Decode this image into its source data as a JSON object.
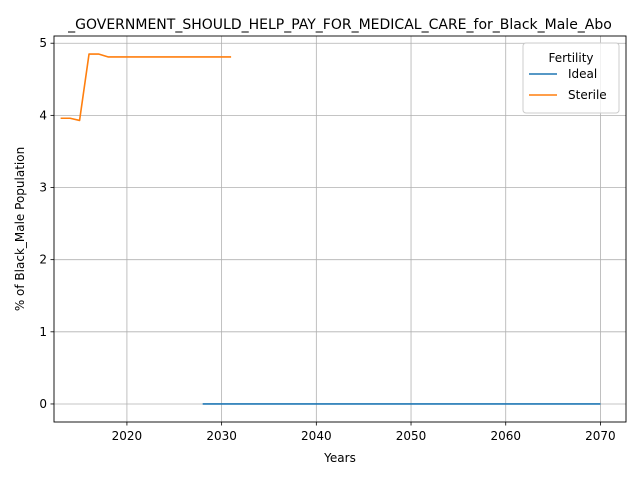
{
  "chart_data": {
    "type": "line",
    "title": "_GOVERNMENT_SHOULD_HELP_PAY_FOR_MEDICAL_CARE_for_Black_Male_Abo",
    "xlabel": "Years",
    "ylabel": "% of Black_Male Population",
    "xlim": [
      2012.3,
      2072.7
    ],
    "ylim": [
      -0.25,
      5.1
    ],
    "xticks": [
      2020,
      2030,
      2040,
      2050,
      2060,
      2070
    ],
    "yticks": [
      0,
      1,
      2,
      3,
      4,
      5
    ],
    "grid": true,
    "legend": {
      "title": "Fertility",
      "position": "top-right"
    },
    "series": [
      {
        "name": "Ideal",
        "color": "#1f77b4",
        "x": [
          2028,
          2030,
          2035,
          2040,
          2045,
          2050,
          2055,
          2060,
          2065,
          2070
        ],
        "y": [
          0,
          0,
          0,
          0,
          0,
          0,
          0,
          0,
          0,
          0
        ]
      },
      {
        "name": "Sterile",
        "color": "#ff7f0e",
        "x": [
          2013,
          2014,
          2015,
          2016,
          2017,
          2018,
          2019,
          2020,
          2021,
          2022,
          2023,
          2024,
          2025,
          2026,
          2027,
          2028,
          2029,
          2030,
          2031
        ],
        "y": [
          3.96,
          3.96,
          3.93,
          4.85,
          4.85,
          4.81,
          4.81,
          4.81,
          4.81,
          4.81,
          4.81,
          4.81,
          4.81,
          4.81,
          4.81,
          4.81,
          4.81,
          4.81,
          4.81
        ]
      }
    ]
  }
}
